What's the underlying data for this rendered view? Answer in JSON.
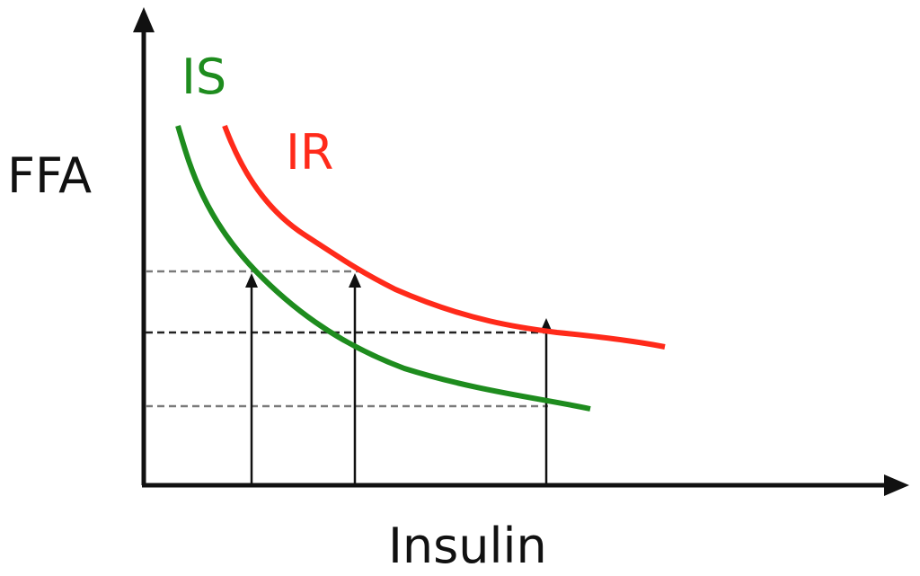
{
  "diagram": {
    "y_axis_label": "FFA",
    "x_axis_label": "Insulin",
    "curves": [
      {
        "label": "IS",
        "color": "#1e8c1e"
      },
      {
        "label": "IR",
        "color": "#ff2a1a"
      }
    ],
    "axis_color": "#111111",
    "guide_color": "#7a7a7a",
    "arrow_color": "#111111"
  }
}
